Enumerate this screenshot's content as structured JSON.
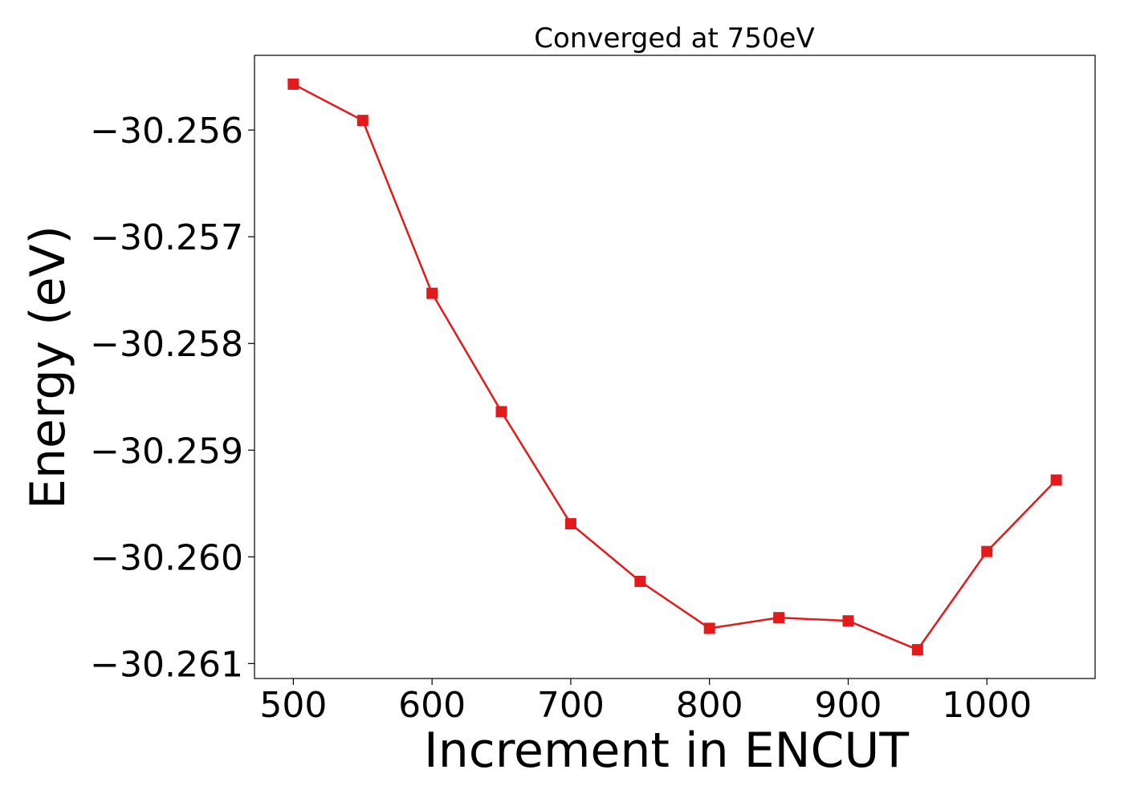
{
  "chart_data": {
    "type": "line",
    "title": "Converged at 750eV",
    "xlabel": "Increment in ENCUT",
    "ylabel": "Energy (eV)",
    "x": [
      500,
      550,
      600,
      650,
      700,
      750,
      800,
      850,
      900,
      950,
      1000,
      1050
    ],
    "series": [
      {
        "values": [
          -30.25557,
          -30.25591,
          -30.25753,
          -30.25864,
          -30.25969,
          -30.26023,
          -30.26067,
          -30.26057,
          -30.2606,
          -30.26087,
          -30.25995,
          -30.25928
        ],
        "color": "#e31a1c",
        "marker": "square"
      }
    ],
    "xlim": [
      472,
      1078
    ],
    "ylim": [
      -30.26114,
      -30.2553
    ],
    "xticks": [
      500,
      600,
      700,
      800,
      900,
      1000
    ],
    "xtick_labels": [
      "500",
      "600",
      "700",
      "800",
      "900",
      "1000"
    ],
    "yticks": [
      -30.256,
      -30.257,
      -30.258,
      -30.259,
      -30.26,
      -30.261
    ],
    "ytick_labels": [
      "−30.256",
      "−30.257",
      "−30.258",
      "−30.259",
      "−30.260",
      "−30.261"
    ],
    "grid": false,
    "legend": "none"
  }
}
